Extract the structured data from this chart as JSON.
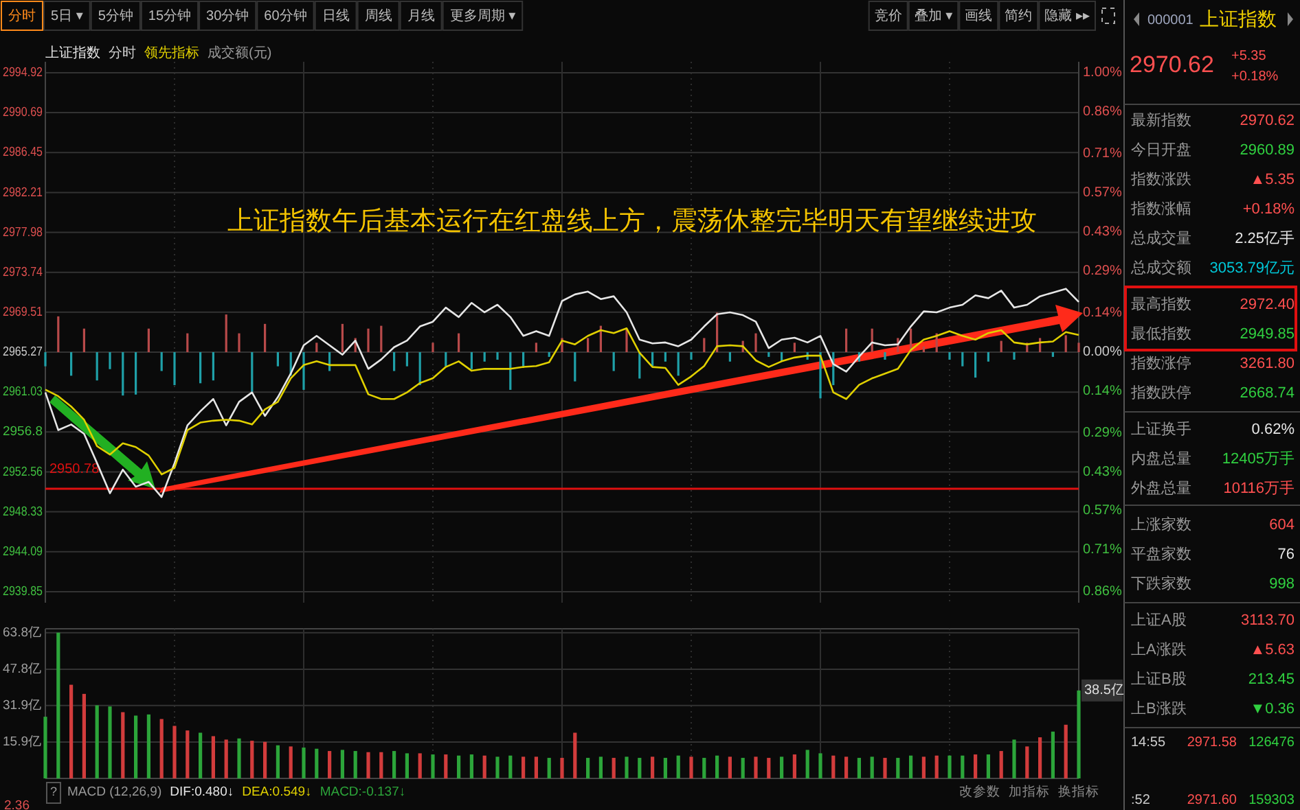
{
  "chart_data": [
    {
      "type": "line",
      "title": "分时",
      "legend": "top left",
      "grid": true,
      "marker": "none",
      "line_style": "solid",
      "categories": [
        null,
        null,
        null,
        null,
        null,
        null,
        null,
        null,
        null,
        null,
        null,
        null,
        null,
        null,
        null,
        null,
        null,
        null,
        null,
        null,
        null,
        null,
        null,
        null,
        null,
        null,
        null,
        null,
        null,
        null,
        null,
        null,
        null,
        null,
        null,
        null,
        null,
        null,
        null,
        null,
        null,
        null,
        null,
        null,
        null,
        null,
        null,
        null,
        null,
        null,
        null,
        null,
        null,
        null,
        null,
        null,
        null,
        null,
        null,
        null,
        null,
        null,
        null,
        null,
        null,
        null,
        null,
        null,
        null,
        null,
        null,
        null,
        null,
        null,
        null,
        null,
        null,
        null,
        null,
        null,
        null
      ],
      "series": [
        {
          "name": "上证指数",
          "color": "#e6e6e6",
          "values": [
            2961.0,
            2957.0,
            2957.6,
            2956.6,
            2953.5,
            2950.3,
            2952.8,
            2951.0,
            2951.5,
            2949.9,
            2953.5,
            2957.5,
            2959.0,
            2960.3,
            2957.5,
            2960.0,
            2961.0,
            2958.5,
            2960.5,
            2963.0,
            2966.0,
            2967.0,
            2966.0,
            2965.0,
            2966.5,
            2963.5,
            2964.5,
            2965.8,
            2966.5,
            2968.0,
            2968.5,
            2970.0,
            2969.0,
            2970.5,
            2969.5,
            2970.3,
            2969.0,
            2967.0,
            2967.5,
            2967.0,
            2970.7,
            2971.4,
            2971.7,
            2970.9,
            2971.2,
            2969.5,
            2966.6,
            2966.2,
            2966.3,
            2965.9,
            2966.6,
            2968.0,
            2969.3,
            2969.5,
            2969.2,
            2968.5,
            2965.7,
            2966.6,
            2966.8,
            2966.3,
            2967.0,
            2964.0,
            2963.2,
            2964.8,
            2966.3,
            2966.0,
            2966.1,
            2968.0,
            2969.6,
            2969.5,
            2970.0,
            2970.3,
            2971.3,
            2971.0,
            2971.8,
            2970.0,
            2970.3,
            2971.2,
            2971.6,
            2972.0,
            2970.6
          ]
        },
        {
          "name": "领先指标",
          "color": "#e0d000",
          "values": [
            2961.3,
            2960.6,
            2959.5,
            2958.1,
            2955.3,
            2954.4,
            2955.6,
            2955.2,
            2954.3,
            2952.3,
            2953.0,
            2957.0,
            2957.8,
            2958.0,
            2958.1,
            2958.0,
            2957.6,
            2959.2,
            2960.0,
            2962.5,
            2963.9,
            2964.3,
            2963.9,
            2963.9,
            2963.9,
            2960.8,
            2960.3,
            2960.3,
            2961.0,
            2962.0,
            2962.5,
            2963.7,
            2964.3,
            2963.3,
            2963.5,
            2963.5,
            2963.5,
            2963.7,
            2963.8,
            2964.2,
            2966.5,
            2966.1,
            2967.0,
            2967.6,
            2967.3,
            2967.8,
            2965.2,
            2963.7,
            2963.6,
            2961.8,
            2962.7,
            2963.8,
            2965.9,
            2966.0,
            2965.9,
            2964.4,
            2963.7,
            2964.3,
            2964.7,
            2964.9,
            2964.9,
            2961.0,
            2960.3,
            2961.8,
            2962.5,
            2963.0,
            2963.5,
            2965.5,
            2966.6,
            2967.0,
            2967.5,
            2967.0,
            2966.6,
            2967.3,
            2967.6,
            2966.3,
            2966.1,
            2966.3,
            2966.4,
            2967.4,
            2967.1
          ]
        },
        {
          "type": "bar",
          "base": [
            2965.27,
            2965.27,
            2965.27,
            2965.27,
            2965.27,
            2965.27,
            2965.27,
            2965.27,
            2965.27,
            2965.27,
            2965.27,
            2965.27,
            2965.27,
            2965.27,
            2965.27,
            2965.27,
            2965.27,
            2965.27,
            2965.27,
            2965.27,
            2965.27,
            2965.27,
            2965.27,
            2965.27,
            2965.27,
            2965.27,
            2965.27,
            2965.27,
            2965.27,
            2965.27,
            2965.27,
            2965.27,
            2965.27,
            2965.27,
            2965.27,
            2965.27,
            2965.27,
            2965.27,
            2965.27,
            2965.27,
            2965.27,
            2965.27,
            2965.27,
            2965.27,
            2965.27,
            2965.27,
            2965.27,
            2965.27,
            2965.27,
            2965.27,
            2965.27,
            2965.27,
            2965.27,
            2965.27,
            2965.27,
            2965.27,
            2965.27,
            2965.27,
            2965.27,
            2965.27,
            2965.27,
            2965.27,
            2965.27,
            2965.27,
            2965.27,
            2965.27,
            2965.27,
            2965.27,
            2965.27,
            2965.27,
            2965.27,
            2965.27,
            2965.27,
            2965.27,
            2965.27,
            2965.27,
            2965.27,
            2965.27,
            2965.27,
            2965.27,
            2965.27
          ],
          "values": [
            -1.5,
            3.8,
            -2.5,
            2.5,
            -3.0,
            -1.8,
            -4.6,
            -4.5,
            2.5,
            -2.0,
            -3.5,
            2.0,
            -3.3,
            -3.0,
            4.0,
            2.0,
            -4.2,
            3.0,
            -1.5,
            -2.5,
            -4.0,
            1.0,
            -2.0,
            3.0,
            1.5,
            2.5,
            2.8,
            -2.0,
            -1.5,
            -3.5,
            1.0,
            -1.5,
            2.0,
            -1.8,
            -1.0,
            -0.8,
            -4.0,
            -1.5,
            1.0,
            -0.5,
            1.5,
            -3.1,
            1.5,
            2.8,
            -2.0,
            2.5,
            -2.8,
            -1.5,
            -1.0,
            -2.5,
            -0.8,
            1.5,
            4.2,
            -1.0,
            1.2,
            2.0,
            -0.5,
            -1.0,
            1.0,
            -0.8,
            -4.9,
            -3.5,
            2.5,
            -1.0,
            2.5,
            -0.8,
            1.5,
            2.5,
            0.6,
            2.0,
            -0.8,
            -1.5,
            -2.7,
            -1.0,
            1.2,
            -0.8,
            1.0,
            1.5,
            -0.5,
            1.8,
            1.0
          ],
          "colors": [
            "#1fa0a8",
            "#b84a4a",
            "#1fa0a8",
            "#b84a4a",
            "#1fa0a8",
            "#1fa0a8",
            "#1fa0a8",
            "#1fa0a8",
            "#b84a4a",
            "#1fa0a8",
            "#1fa0a8",
            "#b84a4a",
            "#1fa0a8",
            "#1fa0a8",
            "#b84a4a",
            "#b84a4a",
            "#1fa0a8",
            "#b84a4a",
            "#1fa0a8",
            "#1fa0a8",
            "#1fa0a8",
            "#b84a4a",
            "#1fa0a8",
            "#b84a4a",
            "#b84a4a",
            "#b84a4a",
            "#b84a4a",
            "#1fa0a8",
            "#1fa0a8",
            "#1fa0a8",
            "#b84a4a",
            "#1fa0a8",
            "#b84a4a",
            "#1fa0a8",
            "#1fa0a8",
            "#1fa0a8",
            "#1fa0a8",
            "#1fa0a8",
            "#b84a4a",
            "#1fa0a8",
            "#b84a4a",
            "#1fa0a8",
            "#b84a4a",
            "#b84a4a",
            "#1fa0a8",
            "#b84a4a",
            "#1fa0a8",
            "#1fa0a8",
            "#1fa0a8",
            "#1fa0a8",
            "#1fa0a8",
            "#b84a4a",
            "#b84a4a",
            "#1fa0a8",
            "#b84a4a",
            "#b84a4a",
            "#1fa0a8",
            "#1fa0a8",
            "#b84a4a",
            "#1fa0a8",
            "#1fa0a8",
            "#1fa0a8",
            "#b84a4a",
            "#1fa0a8",
            "#b84a4a",
            "#1fa0a8",
            "#b84a4a",
            "#b84a4a",
            "#b84a4a",
            "#b84a4a",
            "#1fa0a8",
            "#1fa0a8",
            "#1fa0a8",
            "#1fa0a8",
            "#b84a4a",
            "#1fa0a8",
            "#b84a4a",
            "#b84a4a",
            "#1fa0a8",
            "#b84a4a",
            "#b84a4a"
          ]
        }
      ],
      "ylim": [
        2939.85,
        2994.92
      ],
      "yticks": [
        2939.85,
        2944.09,
        2948.33,
        2952.56,
        2956.8,
        2961.03,
        2965.27,
        2969.51,
        2973.74,
        2977.98,
        2982.21,
        2986.45,
        2990.69,
        2994.92
      ],
      "y2lim": [
        -0.86,
        1.0
      ],
      "y2ticks": [
        {
          "value": -0.86,
          "label": "0.86%"
        },
        {
          "value": -0.71,
          "label": "0.71%"
        },
        {
          "value": -0.57,
          "label": "0.57%"
        },
        {
          "value": -0.43,
          "label": "0.43%"
        },
        {
          "value": -0.29,
          "label": "0.29%"
        },
        {
          "value": -0.14,
          "label": "0.14%"
        },
        {
          "value": 0,
          "label": "0.00%"
        },
        {
          "value": 0.14,
          "label": "0.14%"
        },
        {
          "value": 0.29,
          "label": "0.29%"
        },
        {
          "value": 0.43,
          "label": "0.43%"
        },
        {
          "value": 0.57,
          "label": "0.57%"
        },
        {
          "value": 0.71,
          "label": "0.71%"
        },
        {
          "value": 0.86,
          "label": "0.86%"
        },
        {
          "value": 1.0,
          "label": "1.00%"
        }
      ],
      "ref_lines": [
        {
          "axis": "y",
          "value": 2950.78,
          "label": "2950.78",
          "color": "#e01010"
        }
      ],
      "annotations": [
        "上证指数午后基本运行在红盘线上方，震荡休整完毕明天有望继续进攻"
      ]
    },
    {
      "type": "bar",
      "title": "成交额(元)",
      "grid": true,
      "categories": [
        null,
        null,
        null,
        null,
        null,
        null,
        null,
        null,
        null,
        null,
        null,
        null,
        null,
        null,
        null,
        null,
        null,
        null,
        null,
        null,
        null,
        null,
        null,
        null,
        null,
        null,
        null,
        null,
        null,
        null,
        null,
        null,
        null,
        null,
        null,
        null,
        null,
        null,
        null,
        null,
        null,
        null,
        null,
        null,
        null,
        null,
        null,
        null,
        null,
        null,
        null,
        null,
        null,
        null,
        null,
        null,
        null,
        null,
        null,
        null,
        null,
        null,
        null,
        null,
        null,
        null,
        null,
        null,
        null,
        null,
        null,
        null,
        null,
        null,
        null,
        null,
        null,
        null,
        null,
        null,
        null
      ],
      "values": [
        27.0,
        63.8,
        41.0,
        37.0,
        32.0,
        31.5,
        29.0,
        27.5,
        28.0,
        26.0,
        23.0,
        21.0,
        20.0,
        18.5,
        17.0,
        17.5,
        16.5,
        16.0,
        14.5,
        14.0,
        13.5,
        13.0,
        12.0,
        12.5,
        12.0,
        11.5,
        11.5,
        12.0,
        11.0,
        11.0,
        10.5,
        10.5,
        10.0,
        10.5,
        10.0,
        9.5,
        10.0,
        9.5,
        9.5,
        9.0,
        9.0,
        20.0,
        9.0,
        9.5,
        9.0,
        9.5,
        9.0,
        9.5,
        9.0,
        10.0,
        9.5,
        9.0,
        10.0,
        9.5,
        9.0,
        9.5,
        9.0,
        9.5,
        10.5,
        12.5,
        11.0,
        10.0,
        9.5,
        9.0,
        9.5,
        9.0,
        9.0,
        10.0,
        9.5,
        10.0,
        10.0,
        10.0,
        10.5,
        10.5,
        12.0,
        17.0,
        14.0,
        18.0,
        20.5,
        23.5,
        38.5
      ],
      "colors": [
        "#2ca53a",
        "#2ca53a",
        "#d23c3c",
        "#d23c3c",
        "#2ca53a",
        "#2ca53a",
        "#d23c3c",
        "#2ca53a",
        "#2ca53a",
        "#d23c3c",
        "#d23c3c",
        "#d23c3c",
        "#2ca53a",
        "#d23c3c",
        "#d23c3c",
        "#2ca53a",
        "#d23c3c",
        "#d23c3c",
        "#2ca53a",
        "#d23c3c",
        "#2ca53a",
        "#2ca53a",
        "#d23c3c",
        "#2ca53a",
        "#2ca53a",
        "#d23c3c",
        "#d23c3c",
        "#2ca53a",
        "#2ca53a",
        "#d23c3c",
        "#2ca53a",
        "#d23c3c",
        "#2ca53a",
        "#2ca53a",
        "#d23c3c",
        "#2ca53a",
        "#2ca53a",
        "#d23c3c",
        "#d23c3c",
        "#2ca53a",
        "#d23c3c",
        "#d23c3c",
        "#2ca53a",
        "#2ca53a",
        "#d23c3c",
        "#2ca53a",
        "#2ca53a",
        "#d23c3c",
        "#2ca53a",
        "#2ca53a",
        "#d23c3c",
        "#2ca53a",
        "#2ca53a",
        "#d23c3c",
        "#2ca53a",
        "#d23c3c",
        "#d23c3c",
        "#2ca53a",
        "#d23c3c",
        "#2ca53a",
        "#2ca53a",
        "#d23c3c",
        "#d23c3c",
        "#2ca53a",
        "#2ca53a",
        "#d23c3c",
        "#2ca53a",
        "#2ca53a",
        "#d23c3c",
        "#d23c3c",
        "#2ca53a",
        "#2ca53a",
        "#d23c3c",
        "#2ca53a",
        "#d23c3c",
        "#2ca53a",
        "#d23c3c",
        "#d23c3c",
        "#2ca53a",
        "#d23c3c",
        "#2ca53a"
      ],
      "ylim": [
        0,
        65.5
      ],
      "yticks": [
        {
          "value": 15.9,
          "label": "15.9亿"
        },
        {
          "value": 31.9,
          "label": "31.9亿"
        },
        {
          "value": 47.8,
          "label": "47.8亿"
        },
        {
          "value": 63.8,
          "label": "63.8亿"
        }
      ],
      "annotations": [
        {
          "text": "38.5亿",
          "y": 38.5
        }
      ]
    },
    {
      "type": "other",
      "annotations": [
        "2.36",
        "MACD (12,26,9)",
        "DIF:0.480↓",
        "DEA:0.549↓",
        "MACD:-0.137↓",
        "改参数",
        "加指标",
        "换指标",
        "?"
      ],
      "colors": [
        "#e05050",
        "#999999",
        "#e6e6e6",
        "#e0d000",
        "#2ca53a",
        "#8a8a8a",
        "#8a8a8a",
        "#8a8a8a",
        "#999999"
      ]
    },
    {
      "type": "other",
      "annotations": [
        "分时",
        "5日 ▾",
        "5分钟",
        "15分钟",
        "30分钟",
        "60分钟",
        "日线",
        "周线",
        "月线",
        "更多周期 ▾",
        "竞价",
        "叠加 ▾",
        "画线",
        "简约",
        "隐藏 ▸▸"
      ],
      "colors": [
        "#ff8a1a",
        "#bbbbbb",
        "#bbbbbb",
        "#bbbbbb",
        "#bbbbbb",
        "#bbbbbb",
        "#bbbbbb",
        "#bbbbbb",
        "#bbbbbb",
        "#bbbbbb",
        "#bbbbbb",
        "#bbbbbb",
        "#bbbbbb",
        "#bbbbbb",
        "#bbbbbb"
      ]
    },
    {
      "type": "other",
      "annotations": [
        "000001",
        "上证指数",
        "2970.62",
        "+5.35",
        "+0.18%",
        "最新指数",
        "2970.62",
        "今日开盘",
        "2960.89",
        "指数涨跌",
        "▲5.35",
        "指数涨幅",
        "+0.18%",
        "总成交量",
        "2.25亿手",
        "总成交额",
        "3053.79亿元",
        "最高指数",
        "2972.40",
        "最低指数",
        "2949.85",
        "指数涨停",
        "3261.80",
        "指数跌停",
        "2668.74",
        "上证换手",
        "0.62%",
        "内盘总量",
        "12405万手",
        "外盘总量",
        "10116万手",
        "上涨家数",
        "604",
        "平盘家数",
        "76",
        "下跌家数",
        "998",
        "上证A股",
        "3113.70",
        "上A涨跌",
        "▲5.63",
        "上证B股",
        "213.45",
        "上B涨跌",
        "▼0.36",
        "14:55",
        "2971.58",
        "126476",
        ":52",
        "2971.60",
        "159303"
      ],
      "colors": [
        "#a0a8c0",
        "#f0d000",
        "#ff5050",
        "#ff5050",
        "#ff5050",
        "#999999",
        "#ff5050",
        "#999999",
        "#30d040",
        "#999999",
        "#ff5050",
        "#999999",
        "#ff5050",
        "#999999",
        "#e6e6e6",
        "#999999",
        "#00c8d8",
        "#999999",
        "#ff5050",
        "#999999",
        "#30d040",
        "#999999",
        "#ff5050",
        "#999999",
        "#30d040",
        "#999999",
        "#e6e6e6",
        "#999999",
        "#30d040",
        "#999999",
        "#ff5050",
        "#999999",
        "#ff5050",
        "#999999",
        "#e6e6e6",
        "#999999",
        "#30d040",
        "#999999",
        "#ff5050",
        "#999999",
        "#ff5050",
        "#999999",
        "#30d040",
        "#999999",
        "#30d040",
        "#cccccc",
        "#ff5050",
        "#30d040",
        "#cccccc",
        "#ff5050",
        "#30d040"
      ]
    }
  ]
}
